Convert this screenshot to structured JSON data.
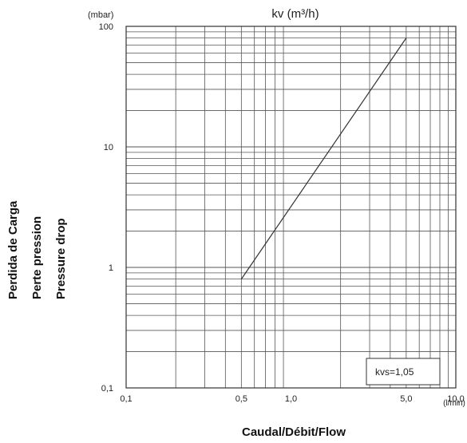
{
  "chart_data": {
    "type": "line",
    "title": "kv (m³/h)",
    "y_unit": "(mbar)",
    "x_unit": "(l/min)",
    "xlabel": "Caudal/Débit/Flow",
    "ylabel_lines": [
      "Perdida de Carga",
      "Perte pression",
      "Pressure drop"
    ],
    "x_scale": "log",
    "y_scale": "log",
    "xlim": [
      0.1,
      10
    ],
    "ylim": [
      0.1,
      100
    ],
    "x_tick_labels": [
      {
        "value": 0.1,
        "label": "0,1"
      },
      {
        "value": 0.5,
        "label": "0,5"
      },
      {
        "value": 1,
        "label": "1,0"
      },
      {
        "value": 5,
        "label": "5,0"
      },
      {
        "value": 10,
        "label": "10,0"
      }
    ],
    "y_tick_labels": [
      {
        "value": 0.1,
        "label": "0,1"
      },
      {
        "value": 1,
        "label": "1"
      },
      {
        "value": 10,
        "label": "10"
      },
      {
        "value": 100,
        "label": "100"
      }
    ],
    "grid": true,
    "series": [
      {
        "x": [
          0.5,
          5.0
        ],
        "y": [
          0.8,
          80
        ],
        "color": "#333333"
      }
    ],
    "annotation": "kvs=1,05"
  }
}
